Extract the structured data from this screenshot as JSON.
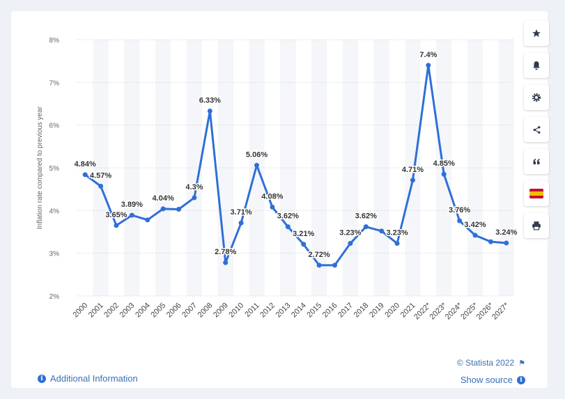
{
  "chart_data": {
    "type": "line",
    "ylabel": "Inflation rate compared to previous year",
    "xlabel": "",
    "ylim": [
      2,
      8
    ],
    "y_ticks": [
      "2%",
      "3%",
      "4%",
      "5%",
      "6%",
      "7%",
      "8%"
    ],
    "y_tick_values": [
      2,
      3,
      4,
      5,
      6,
      7,
      8
    ],
    "categories": [
      "2000",
      "2001",
      "2002",
      "2003",
      "2004",
      "2005",
      "2006",
      "2007",
      "2008",
      "2009",
      "2010",
      "2011",
      "2012",
      "2013",
      "2014",
      "2015",
      "2016",
      "2017",
      "2018",
      "2019",
      "2020",
      "2021",
      "2022*",
      "2023*",
      "2024*",
      "2025*",
      "2026*",
      "2027*"
    ],
    "values": [
      4.84,
      4.57,
      3.65,
      3.89,
      3.78,
      4.04,
      4.03,
      4.3,
      6.33,
      2.78,
      3.71,
      5.06,
      4.08,
      3.62,
      3.21,
      2.72,
      2.72,
      3.23,
      3.62,
      3.52,
      3.23,
      4.71,
      7.4,
      4.85,
      3.76,
      3.42,
      3.27,
      3.24
    ],
    "data_labels": [
      "4.84%",
      "4.57%",
      "3.65%",
      "3.89%",
      "",
      "4.04%",
      "",
      "4.3%",
      "6.33%",
      "2.78%",
      "3.71%",
      "5.06%",
      "4.08%",
      "3.62%",
      "3.21%",
      "2.72%",
      "",
      "3.23%",
      "3.62%",
      "",
      "3.23%",
      "4.71%",
      "7.4%",
      "4.85%",
      "3.76%",
      "3.42%",
      "",
      "3.24%"
    ],
    "series_color": "#2f6fd6",
    "grid": true
  },
  "sidebar": {
    "buttons": [
      {
        "name": "favorite-button",
        "icon": "star-icon"
      },
      {
        "name": "notification-button",
        "icon": "bell-icon"
      },
      {
        "name": "settings-button",
        "icon": "gear-icon"
      },
      {
        "name": "share-button",
        "icon": "share-icon"
      },
      {
        "name": "cite-button",
        "icon": "quote-icon"
      },
      {
        "name": "language-button",
        "icon": "spain-flag-icon"
      },
      {
        "name": "print-button",
        "icon": "printer-icon"
      }
    ]
  },
  "footer": {
    "additional_info": "Additional Information",
    "copyright": "© Statista 2022",
    "show_source": "Show source"
  },
  "colors": {
    "accent": "#2f6fd6",
    "link": "#3a6fb6",
    "background": "#eef1f5"
  }
}
